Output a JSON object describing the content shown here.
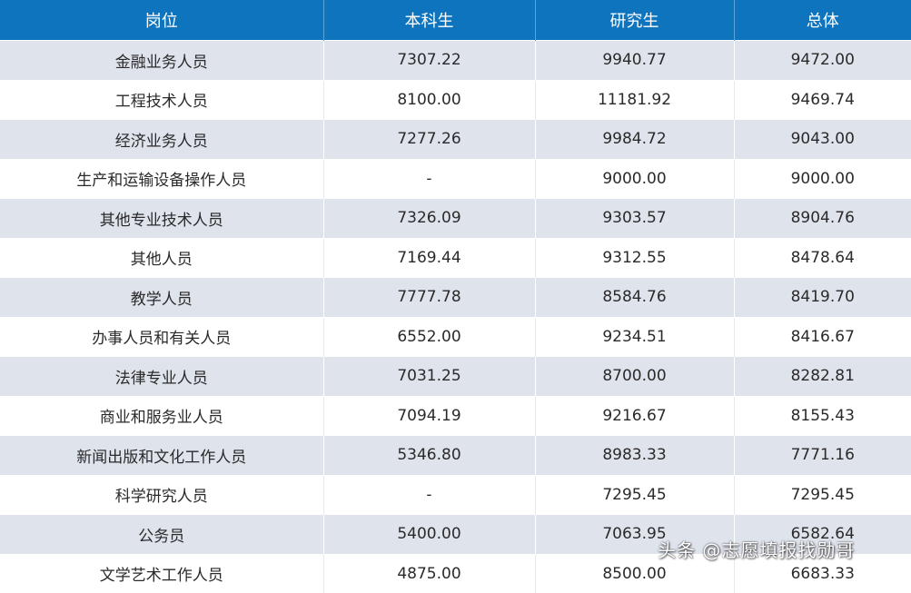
{
  "table": {
    "headers": [
      "岗位",
      "本科生",
      "研究生",
      "总体"
    ],
    "rows": [
      [
        "金融业务人员",
        "7307.22",
        "9940.77",
        "9472.00"
      ],
      [
        "工程技术人员",
        "8100.00",
        "11181.92",
        "9469.74"
      ],
      [
        "经济业务人员",
        "7277.26",
        "9984.72",
        "9043.00"
      ],
      [
        "生产和运输设备操作人员",
        "-",
        "9000.00",
        "9000.00"
      ],
      [
        "其他专业技术人员",
        "7326.09",
        "9303.57",
        "8904.76"
      ],
      [
        "其他人员",
        "7169.44",
        "9312.55",
        "8478.64"
      ],
      [
        "教学人员",
        "7777.78",
        "8584.76",
        "8419.70"
      ],
      [
        "办事人员和有关人员",
        "6552.00",
        "9234.51",
        "8416.67"
      ],
      [
        "法律专业人员",
        "7031.25",
        "8700.00",
        "8282.81"
      ],
      [
        "商业和服务业人员",
        "7094.19",
        "9216.67",
        "8155.43"
      ],
      [
        "新闻出版和文化工作人员",
        "5346.80",
        "8983.33",
        "7771.16"
      ],
      [
        "科学研究人员",
        "-",
        "7295.45",
        "7295.45"
      ],
      [
        "公务员",
        "5400.00",
        "7063.95",
        "6582.64"
      ],
      [
        "文学艺术工作人员",
        "4875.00",
        "8500.00",
        "6683.33"
      ]
    ]
  },
  "watermark": "头条 @志愿填报找勋哥",
  "colors": {
    "header_bg": "#0f74be",
    "header_text": "#ffffff",
    "stripe_bg": "#dfe3ec",
    "row_bg": "#ffffff"
  }
}
